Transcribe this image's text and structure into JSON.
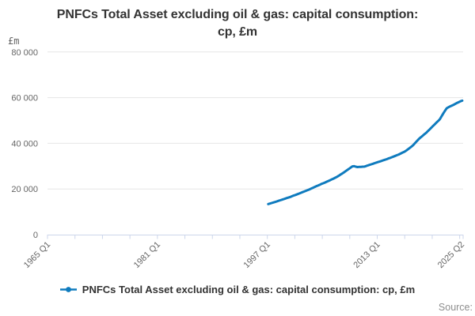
{
  "header": {
    "title_line1": "PNFCs Total Asset excluding oil & gas: capital consumption:",
    "title_line2": "cp, £m"
  },
  "unit_label": "£m",
  "source_label": "Source:",
  "legend": {
    "label": "PNFCs Total Asset excluding oil & gas: capital consumption: cp, £m"
  },
  "chart_data": {
    "type": "line",
    "title": "PNFCs Total Asset excluding oil & gas: capital consumption: cp, £m",
    "ylabel": "£m",
    "grid": "horizontal-only",
    "legend_position": "bottom-center",
    "x_axis": {
      "start_period": "1965 Q1",
      "end_period": "2025 Q2",
      "frequency": "quarterly",
      "tick_interval_years": 4,
      "tick_labels": [
        "1965 Q1",
        "1981 Q1",
        "1997 Q1",
        "2013 Q1",
        "2025 Q2"
      ],
      "label_rotation_deg": -45
    },
    "y_axis": {
      "min": 0,
      "max": 80000,
      "tick_step": 20000,
      "tick_labels": [
        "0",
        "20 000",
        "40 000",
        "60 000",
        "80 000"
      ]
    },
    "series": [
      {
        "name": "PNFCs Total Asset excluding oil & gas: capital consumption: cp, £m",
        "frequency": "quarterly",
        "start_period": "1997 Q1",
        "end_period": "2025 Q2",
        "values": [
          13400,
          13600,
          13850,
          14100,
          14300,
          14550,
          14800,
          15050,
          15300,
          15550,
          15800,
          16050,
          16300,
          16550,
          16850,
          17150,
          17400,
          17700,
          18000,
          18300,
          18600,
          18900,
          19200,
          19500,
          19800,
          20150,
          20500,
          20850,
          21200,
          21500,
          21850,
          22200,
          22500,
          22800,
          23150,
          23500,
          23800,
          24200,
          24550,
          24900,
          25300,
          25750,
          26250,
          26700,
          27200,
          27750,
          28300,
          28800,
          29350,
          29900,
          30000,
          29750,
          29600,
          29650,
          29700,
          29750,
          29800,
          30050,
          30300,
          30550,
          30800,
          31050,
          31300,
          31550,
          31800,
          32050,
          32300,
          32550,
          32800,
          33050,
          33350,
          33600,
          33900,
          34200,
          34500,
          34800,
          35100,
          35450,
          35850,
          36200,
          36600,
          37150,
          37750,
          38300,
          38900,
          39700,
          40500,
          41300,
          42100,
          42700,
          43350,
          44000,
          44600,
          45350,
          46100,
          46850,
          47600,
          48350,
          49100,
          49800,
          50600,
          51900,
          53200,
          54300,
          55400,
          55800,
          56200,
          56550,
          56900,
          57300,
          57700,
          58050,
          58400,
          58700
        ]
      }
    ],
    "colors": {
      "line": "#0f7bbe",
      "grid": "#e6e6e6",
      "axis": "#ccd6eb",
      "tick_text": "#666666",
      "title_text": "#333333",
      "legend_text": "#333333",
      "source_text": "#8e8e8e"
    }
  }
}
